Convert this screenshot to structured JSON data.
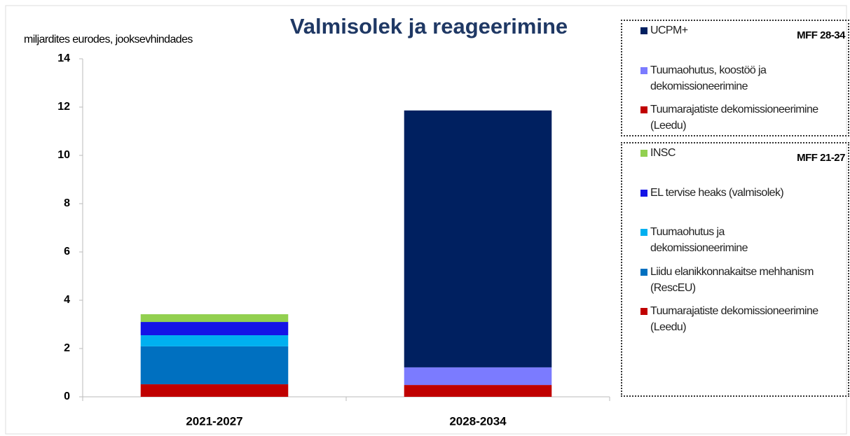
{
  "chart_data": {
    "type": "stacked_bar",
    "title": "Valmisolek ja reageerimine",
    "y_label": "miljardites eurodes, jooksevhindades",
    "categories": [
      "2021-2027",
      "2028-2034"
    ],
    "ylim": [
      0,
      14
    ],
    "yticks": [
      0,
      2,
      4,
      6,
      8,
      10,
      12,
      14
    ],
    "grid": false,
    "series_groups": [
      {
        "title": "MFF 28-34",
        "series": [
          {
            "name": "UCPM+",
            "color": "#002060",
            "values": [
              null,
              10.64
            ]
          },
          {
            "name": "Tuumaohutus, koostöö ja dekomissioneerimine",
            "color": "#7b7bff",
            "values": [
              null,
              0.73
            ]
          },
          {
            "name": "Tuumarajatiste dekomissioneerimine (Leedu)",
            "color": "#c00000",
            "values": [
              null,
              0.49
            ]
          }
        ]
      },
      {
        "title": "MFF 21-27",
        "series": [
          {
            "name": "INSC",
            "color": "#92d050",
            "values": [
              0.32,
              null
            ]
          },
          {
            "name": "EL tervise heaks (valmisolek)",
            "color": "#1414e6",
            "values": [
              0.55,
              null
            ]
          },
          {
            "name": "Tuumaohutus ja dekomissioneerimine",
            "color": "#00b0f0",
            "values": [
              0.46,
              null
            ]
          },
          {
            "name": "Liidu elanikkonnakaitse mehhanism (RescEU)",
            "color": "#0070c0",
            "values": [
              1.57,
              null
            ]
          },
          {
            "name": "Tuumarajatiste dekomissioneerimine (Leedu)",
            "color": "#c00000",
            "values": [
              0.52,
              null
            ]
          }
        ]
      }
    ]
  }
}
